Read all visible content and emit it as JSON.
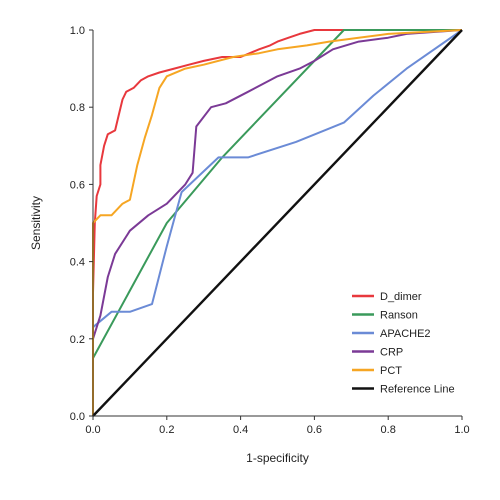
{
  "chart_data": {
    "type": "line",
    "title": "",
    "xlabel": "1-specificity",
    "ylabel": "Sensitivity",
    "xlim": [
      0,
      1
    ],
    "ylim": [
      0,
      1
    ],
    "x_ticks": [
      0.0,
      0.2,
      0.4,
      0.6,
      0.8,
      1.0
    ],
    "y_ticks": [
      0.0,
      0.2,
      0.4,
      0.6,
      0.8,
      1.0
    ],
    "x_tick_labels": [
      "0.0",
      "0.2",
      "0.4",
      "0.6",
      "0.8",
      "1.0"
    ],
    "y_tick_labels": [
      "0.0",
      "0.2",
      "0.4",
      "0.6",
      "0.8",
      "1.0"
    ],
    "grid": false,
    "legend_position": "bottom-right",
    "series": [
      {
        "name": "D_dimer",
        "color": "#e8383d",
        "points": [
          [
            0,
            0
          ],
          [
            0,
            0.32
          ],
          [
            0.005,
            0.5
          ],
          [
            0.01,
            0.57
          ],
          [
            0.02,
            0.6
          ],
          [
            0.02,
            0.65
          ],
          [
            0.03,
            0.7
          ],
          [
            0.04,
            0.73
          ],
          [
            0.06,
            0.74
          ],
          [
            0.07,
            0.78
          ],
          [
            0.08,
            0.82
          ],
          [
            0.09,
            0.84
          ],
          [
            0.11,
            0.85
          ],
          [
            0.13,
            0.87
          ],
          [
            0.15,
            0.88
          ],
          [
            0.18,
            0.89
          ],
          [
            0.22,
            0.9
          ],
          [
            0.26,
            0.91
          ],
          [
            0.3,
            0.92
          ],
          [
            0.35,
            0.93
          ],
          [
            0.4,
            0.93
          ],
          [
            0.45,
            0.95
          ],
          [
            0.48,
            0.96
          ],
          [
            0.5,
            0.97
          ],
          [
            0.53,
            0.98
          ],
          [
            0.56,
            0.99
          ],
          [
            0.6,
            1.0
          ],
          [
            1.0,
            1.0
          ]
        ]
      },
      {
        "name": "Ranson",
        "color": "#3a9a5b",
        "points": [
          [
            0,
            0
          ],
          [
            0,
            0.15
          ],
          [
            0.2,
            0.5
          ],
          [
            0.35,
            0.67
          ],
          [
            0.68,
            1.0
          ],
          [
            1.0,
            1.0
          ]
        ]
      },
      {
        "name": "APACHE2",
        "color": "#6b8bd6",
        "points": [
          [
            0,
            0
          ],
          [
            0,
            0.23
          ],
          [
            0.05,
            0.27
          ],
          [
            0.1,
            0.27
          ],
          [
            0.16,
            0.29
          ],
          [
            0.2,
            0.44
          ],
          [
            0.24,
            0.58
          ],
          [
            0.34,
            0.67
          ],
          [
            0.42,
            0.67
          ],
          [
            0.55,
            0.71
          ],
          [
            0.68,
            0.76
          ],
          [
            0.76,
            0.83
          ],
          [
            0.85,
            0.9
          ],
          [
            1.0,
            1.0
          ]
        ]
      },
      {
        "name": "CRP",
        "color": "#7b3a96",
        "points": [
          [
            0,
            0
          ],
          [
            0,
            0.2
          ],
          [
            0.02,
            0.26
          ],
          [
            0.04,
            0.36
          ],
          [
            0.06,
            0.42
          ],
          [
            0.1,
            0.48
          ],
          [
            0.15,
            0.52
          ],
          [
            0.2,
            0.55
          ],
          [
            0.25,
            0.6
          ],
          [
            0.27,
            0.63
          ],
          [
            0.28,
            0.75
          ],
          [
            0.32,
            0.8
          ],
          [
            0.36,
            0.81
          ],
          [
            0.42,
            0.84
          ],
          [
            0.5,
            0.88
          ],
          [
            0.56,
            0.9
          ],
          [
            0.6,
            0.92
          ],
          [
            0.65,
            0.95
          ],
          [
            0.72,
            0.97
          ],
          [
            0.8,
            0.98
          ],
          [
            0.85,
            0.99
          ],
          [
            1.0,
            1.0
          ]
        ]
      },
      {
        "name": "PCT",
        "color": "#f6a623",
        "points": [
          [
            0,
            0
          ],
          [
            0,
            0.5
          ],
          [
            0.02,
            0.52
          ],
          [
            0.05,
            0.52
          ],
          [
            0.08,
            0.55
          ],
          [
            0.1,
            0.56
          ],
          [
            0.12,
            0.65
          ],
          [
            0.14,
            0.72
          ],
          [
            0.16,
            0.78
          ],
          [
            0.18,
            0.85
          ],
          [
            0.2,
            0.88
          ],
          [
            0.25,
            0.9
          ],
          [
            0.3,
            0.91
          ],
          [
            0.38,
            0.93
          ],
          [
            0.45,
            0.94
          ],
          [
            0.5,
            0.95
          ],
          [
            0.58,
            0.96
          ],
          [
            0.64,
            0.97
          ],
          [
            0.72,
            0.98
          ],
          [
            0.8,
            0.99
          ],
          [
            1.0,
            1.0
          ]
        ]
      },
      {
        "name": "Reference Line",
        "color": "#111111",
        "points": [
          [
            0,
            0
          ],
          [
            1,
            1
          ]
        ]
      }
    ]
  }
}
